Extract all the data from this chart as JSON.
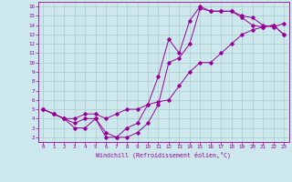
{
  "xlabel": "Windchill (Refroidissement éolien,°C)",
  "xlim": [
    -0.5,
    23.5
  ],
  "ylim": [
    1.5,
    16.5
  ],
  "xticks": [
    0,
    1,
    2,
    3,
    4,
    5,
    6,
    7,
    8,
    9,
    10,
    11,
    12,
    13,
    14,
    15,
    16,
    17,
    18,
    19,
    20,
    21,
    22,
    23
  ],
  "yticks": [
    2,
    3,
    4,
    5,
    6,
    7,
    8,
    9,
    10,
    11,
    12,
    13,
    14,
    15,
    16
  ],
  "bg_color": "#cce8ec",
  "line_color": "#990099",
  "grid_color": "#aacccc",
  "line1_x": [
    0,
    1,
    2,
    3,
    4,
    5,
    6,
    7,
    8,
    9,
    10,
    11,
    12,
    13,
    14,
    15,
    16,
    17,
    18,
    19,
    20,
    21,
    22,
    23
  ],
  "line1_y": [
    5,
    4.5,
    4,
    3.5,
    4,
    4,
    2,
    2,
    3,
    3.5,
    5.5,
    8.5,
    12.5,
    11,
    14.5,
    16,
    15.5,
    15.5,
    15.5,
    14.8,
    14,
    13.8,
    14,
    13
  ],
  "line2_x": [
    0,
    1,
    2,
    3,
    4,
    5,
    6,
    7,
    8,
    9,
    10,
    11,
    12,
    13,
    14,
    15,
    16,
    17,
    18,
    19,
    20,
    21,
    22,
    23
  ],
  "line2_y": [
    5,
    4.5,
    4,
    4,
    4.5,
    4.5,
    4,
    4.5,
    5,
    5,
    5.5,
    5.8,
    6,
    7.5,
    9,
    10,
    10,
    11,
    12,
    13,
    13.5,
    13.8,
    14,
    13
  ],
  "line3_x": [
    0,
    1,
    2,
    3,
    4,
    5,
    6,
    7,
    8,
    9,
    10,
    11,
    12,
    13,
    14,
    15,
    16,
    17,
    18,
    19,
    20,
    21,
    22,
    23
  ],
  "line3_y": [
    5,
    4.5,
    4,
    3,
    3,
    4,
    2.5,
    2,
    2,
    2.5,
    3.5,
    5.5,
    10,
    10.5,
    12,
    15.8,
    15.5,
    15.5,
    15.5,
    15,
    14.8,
    14,
    13.8,
    14.2
  ]
}
